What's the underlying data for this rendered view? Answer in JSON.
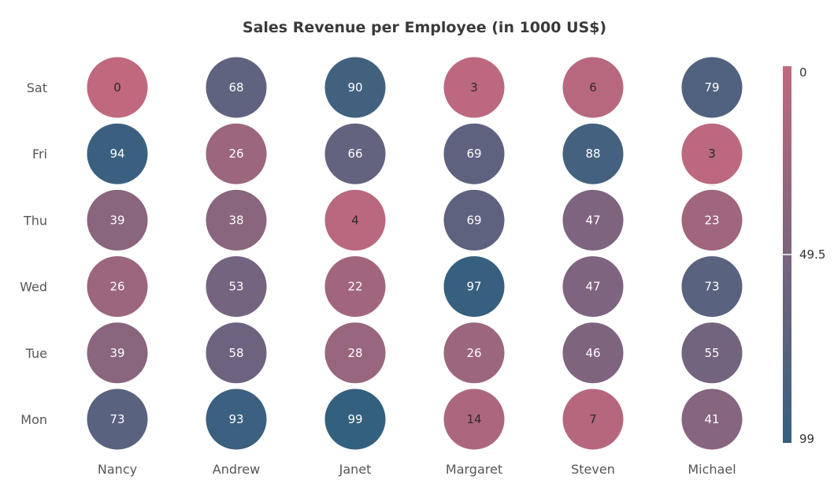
{
  "chart_data": {
    "type": "heatmap",
    "title": "Sales Revenue per Employee (in 1000 US$)",
    "xlabel": "",
    "ylabel": "",
    "x_categories": [
      "Nancy",
      "Andrew",
      "Janet",
      "Margaret",
      "Steven",
      "Michael"
    ],
    "y_categories": [
      "Sat",
      "Fri",
      "Thu",
      "Wed",
      "Tue",
      "Mon"
    ],
    "values": [
      [
        0,
        68,
        90,
        3,
        6,
        79
      ],
      [
        94,
        26,
        66,
        69,
        88,
        3
      ],
      [
        39,
        38,
        4,
        69,
        47,
        23
      ],
      [
        26,
        53,
        22,
        97,
        47,
        73
      ],
      [
        39,
        58,
        28,
        26,
        46,
        55
      ],
      [
        73,
        93,
        99,
        14,
        7,
        41
      ]
    ],
    "cell_shape": "bubble",
    "color_scale": {
      "min": 0,
      "max": 99,
      "min_color": "#c0687e",
      "max_color": "#34607f"
    },
    "legend": {
      "position": "right",
      "labels": [
        "0",
        "49.5",
        "99"
      ]
    }
  }
}
